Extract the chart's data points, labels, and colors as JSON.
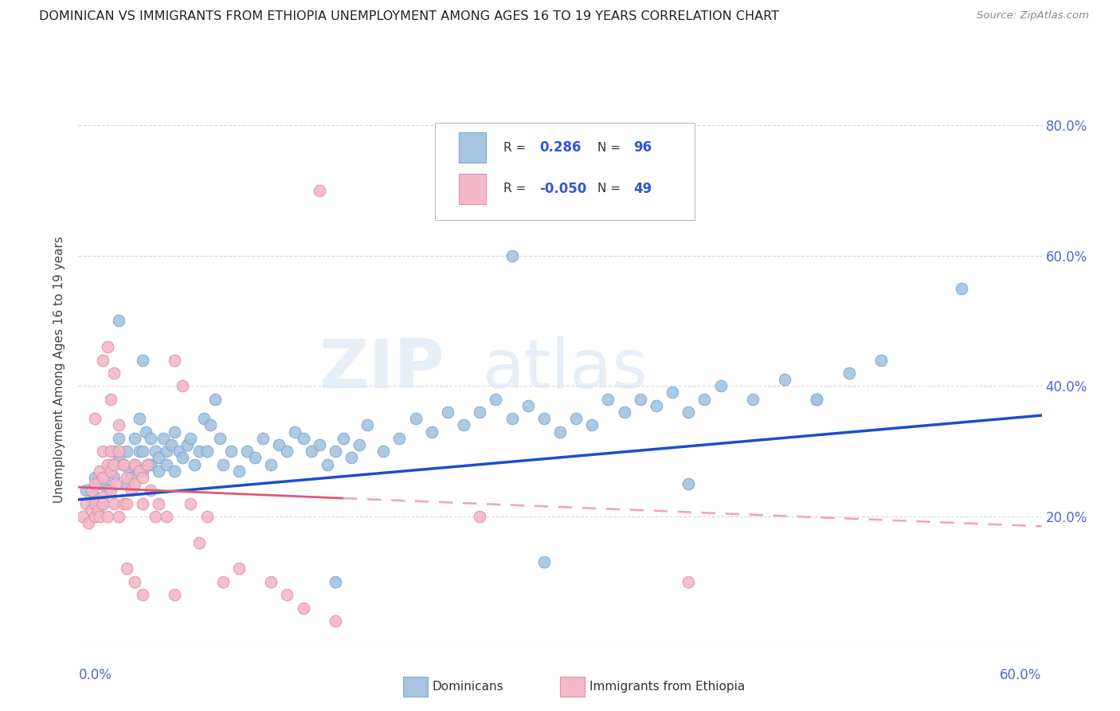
{
  "title": "DOMINICAN VS IMMIGRANTS FROM ETHIOPIA UNEMPLOYMENT AMONG AGES 16 TO 19 YEARS CORRELATION CHART",
  "source": "Source: ZipAtlas.com",
  "ylabel": "Unemployment Among Ages 16 to 19 years",
  "xlim": [
    0.0,
    0.6
  ],
  "ylim": [
    0.0,
    0.85
  ],
  "y_ticks": [
    0.2,
    0.4,
    0.6,
    0.8
  ],
  "y_tick_labels": [
    "20.0%",
    "40.0%",
    "60.0%",
    "80.0%"
  ],
  "dominicans_color": "#a8c4e0",
  "dominicans_edge": "#7aaad0",
  "ethiopia_color": "#f4b8c8",
  "ethiopia_edge": "#e090a8",
  "line_dominicans_color": "#1a4fcc",
  "line_ethiopia_solid_color": "#e05878",
  "line_ethiopia_dash_color": "#f4a0b8",
  "watermark_zip": "ZIP",
  "watermark_atlas": "atlas",
  "dominicans_x": [
    0.005,
    0.008,
    0.01,
    0.01,
    0.012,
    0.015,
    0.015,
    0.018,
    0.018,
    0.02,
    0.022,
    0.022,
    0.025,
    0.025,
    0.028,
    0.03,
    0.03,
    0.032,
    0.033,
    0.035,
    0.035,
    0.038,
    0.038,
    0.04,
    0.04,
    0.042,
    0.043,
    0.045,
    0.045,
    0.048,
    0.05,
    0.05,
    0.053,
    0.055,
    0.055,
    0.058,
    0.06,
    0.06,
    0.063,
    0.065,
    0.068,
    0.07,
    0.072,
    0.075,
    0.078,
    0.08,
    0.082,
    0.085,
    0.088,
    0.09,
    0.095,
    0.1,
    0.105,
    0.11,
    0.115,
    0.12,
    0.125,
    0.13,
    0.135,
    0.14,
    0.145,
    0.15,
    0.155,
    0.16,
    0.165,
    0.17,
    0.175,
    0.18,
    0.19,
    0.2,
    0.21,
    0.22,
    0.23,
    0.24,
    0.25,
    0.26,
    0.27,
    0.28,
    0.29,
    0.3,
    0.31,
    0.32,
    0.33,
    0.34,
    0.35,
    0.36,
    0.37,
    0.38,
    0.39,
    0.4,
    0.42,
    0.44,
    0.46,
    0.48,
    0.5,
    0.55
  ],
  "dominicans_y": [
    0.24,
    0.22,
    0.23,
    0.26,
    0.25,
    0.22,
    0.25,
    0.24,
    0.27,
    0.28,
    0.26,
    0.3,
    0.29,
    0.32,
    0.28,
    0.25,
    0.3,
    0.27,
    0.26,
    0.28,
    0.32,
    0.3,
    0.35,
    0.3,
    0.27,
    0.33,
    0.28,
    0.32,
    0.28,
    0.3,
    0.29,
    0.27,
    0.32,
    0.3,
    0.28,
    0.31,
    0.27,
    0.33,
    0.3,
    0.29,
    0.31,
    0.32,
    0.28,
    0.3,
    0.35,
    0.3,
    0.34,
    0.38,
    0.32,
    0.28,
    0.3,
    0.27,
    0.3,
    0.29,
    0.32,
    0.28,
    0.31,
    0.3,
    0.33,
    0.32,
    0.3,
    0.31,
    0.28,
    0.3,
    0.32,
    0.29,
    0.31,
    0.34,
    0.3,
    0.32,
    0.35,
    0.33,
    0.36,
    0.34,
    0.36,
    0.38,
    0.35,
    0.37,
    0.35,
    0.33,
    0.35,
    0.34,
    0.38,
    0.36,
    0.38,
    0.37,
    0.39,
    0.36,
    0.38,
    0.4,
    0.38,
    0.41,
    0.38,
    0.42,
    0.44,
    0.55
  ],
  "dominicans_y_outliers_x": [
    0.025,
    0.04,
    0.16,
    0.27,
    0.38,
    0.46,
    0.29
  ],
  "dominicans_y_outliers_y": [
    0.5,
    0.44,
    0.1,
    0.6,
    0.25,
    0.38,
    0.13
  ],
  "ethiopia_x": [
    0.003,
    0.005,
    0.006,
    0.008,
    0.008,
    0.01,
    0.01,
    0.01,
    0.012,
    0.013,
    0.013,
    0.015,
    0.015,
    0.015,
    0.015,
    0.018,
    0.018,
    0.02,
    0.02,
    0.02,
    0.022,
    0.022,
    0.023,
    0.025,
    0.025,
    0.028,
    0.028,
    0.03,
    0.03,
    0.033,
    0.035,
    0.035,
    0.038,
    0.04,
    0.04,
    0.043,
    0.045,
    0.048,
    0.05,
    0.055,
    0.06,
    0.065,
    0.07,
    0.075,
    0.08,
    0.09,
    0.1,
    0.15,
    0.25
  ],
  "ethiopia_y": [
    0.2,
    0.22,
    0.19,
    0.21,
    0.24,
    0.2,
    0.22,
    0.25,
    0.21,
    0.2,
    0.27,
    0.23,
    0.26,
    0.3,
    0.22,
    0.2,
    0.28,
    0.24,
    0.27,
    0.3,
    0.22,
    0.28,
    0.25,
    0.2,
    0.3,
    0.22,
    0.28,
    0.22,
    0.26,
    0.24,
    0.28,
    0.25,
    0.27,
    0.26,
    0.22,
    0.28,
    0.24,
    0.2,
    0.22,
    0.2,
    0.44,
    0.4,
    0.22,
    0.16,
    0.2,
    0.1,
    0.12,
    0.7,
    0.2
  ],
  "ethiopia_outliers_x": [
    0.015,
    0.018,
    0.02,
    0.022,
    0.01,
    0.025,
    0.03,
    0.035,
    0.04,
    0.06,
    0.12,
    0.13,
    0.14,
    0.16,
    0.38
  ],
  "ethiopia_outliers_y": [
    0.44,
    0.46,
    0.38,
    0.42,
    0.35,
    0.34,
    0.12,
    0.1,
    0.08,
    0.08,
    0.1,
    0.08,
    0.06,
    0.04,
    0.1
  ],
  "trend_dom_x0": 0.0,
  "trend_dom_x1": 0.6,
  "trend_dom_y0": 0.226,
  "trend_dom_y1": 0.355,
  "trend_eth_solid_x0": 0.0,
  "trend_eth_solid_x1": 0.165,
  "trend_eth_solid_y0": 0.245,
  "trend_eth_solid_y1": 0.228,
  "trend_eth_dash_x0": 0.165,
  "trend_eth_dash_x1": 0.6,
  "trend_eth_dash_y0": 0.228,
  "trend_eth_dash_y1": 0.185
}
